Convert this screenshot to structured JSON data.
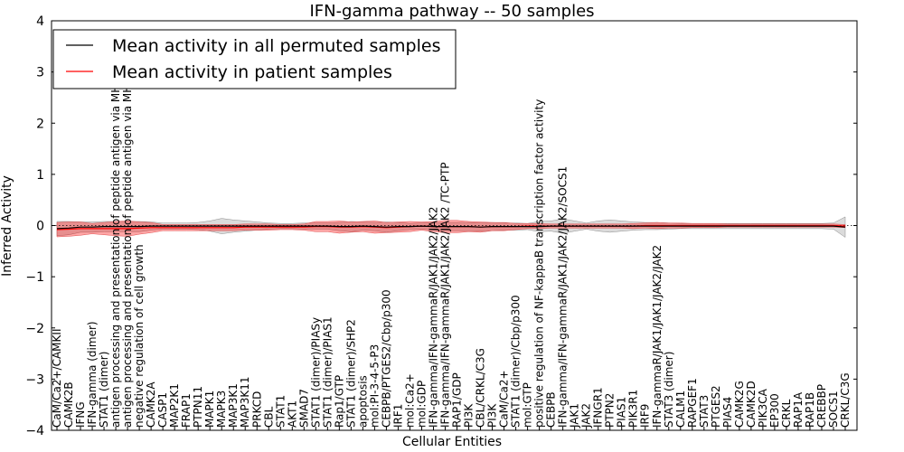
{
  "chart_data": {
    "type": "line",
    "title": "IFN-gamma pathway -- 50 samples",
    "xlabel": "Cellular Entities",
    "ylabel": "Inferred Activity",
    "ylim": [
      -4,
      4
    ],
    "yticks": [
      "4",
      "3",
      "2",
      "1",
      "0",
      "−1",
      "−2",
      "−3",
      "−4"
    ],
    "legend_position": "top-left",
    "series": [
      {
        "name": "Mean activity in all permuted samples",
        "color": "#000000"
      },
      {
        "name": "Mean activity in patient samples",
        "color": "#ff0000"
      }
    ],
    "categories": [
      "CaM/Ca2+/CAMKII",
      "CAMK2B",
      "IFNG",
      "IFN-gamma (dimer)",
      "STAT1 (dimer)",
      "antigen processing and presentation of peptide antigen via MHC class I",
      "antigen processing and presentation of peptide antigen via MHC class II",
      "negative regulation of cell growth",
      "CAMK2A",
      "CASP1",
      "MAP2K1",
      "FRAP1",
      "PTPN11",
      "MAPK1",
      "MAPK3",
      "MAP3K1",
      "MAP3K11",
      "PRKCD",
      "CBL",
      "STAT1",
      "AKT1",
      "SMAD7",
      "STAT1 (dimer)/PIASy",
      "STAT1 (dimer)/PIAS1",
      "Rap1/GTP",
      "STAT1 (dimer)/SHP2",
      "apoptosis",
      "mol:PI-3-4-5-P3",
      "CEBPB/PTGES2/Cbp/p300",
      "IRF1",
      "mol:Ca2+",
      "mol:GDP",
      "IFN-gamma/IFN-gammaR/JAK1/JAK2/JAK2",
      "IFN-gamma/IFN-gammaR/JAK1/JAK2/JAK2 /TC-PTP",
      "RAP1/GDP",
      "PI3K",
      "CBL/CRKL/C3G",
      "PI3K",
      "CaM/Ca2+",
      "STAT1 (dimer)/Cbp/p300",
      "mol:GTP",
      "positive regulation of NF-kappaB transcription factor activity",
      "CEBPB",
      "IFN-gamma/IFN-gammaR/JAK1/JAK2/JAK2/SOCS1",
      "JAK1",
      "JAK2",
      "IFNGR1",
      "PTPN2",
      "PIAS1",
      "PIK3R1",
      "IRF9",
      "IFN-gammaR/JAK1/JAK1/JAK2/JAK2",
      "STAT3 (dimer)",
      "CALM1",
      "RAPGEF1",
      "STAT3",
      "PTGES2",
      "PIAS4",
      "CAMK2G",
      "CAMK2D",
      "PIK3CA",
      "EP300",
      "CRKL",
      "RAP1A",
      "RAP1B",
      "CREBBP",
      "SOCS1",
      "CRKL/C3G"
    ],
    "permuted_mean": [
      -0.06,
      -0.05,
      -0.03,
      -0.03,
      -0.02,
      -0.02,
      -0.02,
      -0.02,
      -0.01,
      -0.01,
      -0.01,
      -0.01,
      -0.01,
      -0.01,
      -0.01,
      -0.01,
      -0.01,
      -0.01,
      -0.01,
      -0.01,
      -0.01,
      -0.01,
      -0.01,
      -0.01,
      -0.02,
      -0.02,
      -0.01,
      -0.02,
      -0.03,
      -0.02,
      -0.02,
      -0.01,
      -0.02,
      -0.02,
      -0.02,
      -0.02,
      -0.03,
      -0.02,
      -0.02,
      -0.02,
      -0.02,
      -0.02,
      -0.01,
      -0.01,
      -0.01,
      -0.01,
      -0.01,
      -0.01,
      -0.01,
      -0.01,
      -0.01,
      -0.01,
      -0.01,
      -0.01,
      -0.01,
      -0.01,
      -0.01,
      -0.01,
      -0.01,
      -0.01,
      -0.01,
      -0.01,
      -0.01,
      -0.01,
      -0.01,
      -0.01,
      -0.01,
      -0.03,
      0.0
    ],
    "permuted_spread": [
      0.14,
      0.13,
      0.1,
      0.1,
      0.1,
      0.1,
      0.1,
      0.1,
      0.08,
      0.06,
      0.06,
      0.06,
      0.07,
      0.1,
      0.15,
      0.12,
      0.1,
      0.08,
      0.06,
      0.05,
      0.05,
      0.06,
      0.06,
      0.06,
      0.08,
      0.1,
      0.08,
      0.08,
      0.1,
      0.08,
      0.06,
      0.06,
      0.07,
      0.08,
      0.08,
      0.08,
      0.08,
      0.08,
      0.07,
      0.07,
      0.06,
      0.1,
      0.1,
      0.14,
      0.1,
      0.06,
      0.1,
      0.12,
      0.1,
      0.08,
      0.07,
      0.07,
      0.06,
      0.05,
      0.05,
      0.05,
      0.05,
      0.05,
      0.05,
      0.05,
      0.05,
      0.05,
      0.05,
      0.05,
      0.05,
      0.05,
      0.06,
      0.2,
      0.05
    ],
    "patient_mean": [
      -0.08,
      -0.07,
      -0.06,
      -0.06,
      -0.06,
      -0.06,
      -0.06,
      -0.05,
      -0.04,
      -0.04,
      -0.04,
      -0.04,
      -0.04,
      -0.04,
      -0.04,
      -0.04,
      -0.03,
      -0.03,
      -0.03,
      -0.03,
      -0.03,
      -0.03,
      -0.02,
      -0.02,
      -0.03,
      -0.03,
      -0.02,
      -0.03,
      -0.04,
      -0.03,
      -0.02,
      -0.01,
      -0.02,
      -0.02,
      -0.02,
      -0.02,
      -0.03,
      -0.02,
      -0.02,
      -0.02,
      -0.01,
      -0.01,
      -0.01,
      -0.01,
      -0.01,
      -0.01,
      -0.01,
      -0.01,
      -0.01,
      -0.01,
      0.0,
      0.0,
      0.0,
      0.0,
      0.0,
      0.0,
      0.0,
      0.0,
      0.0,
      0.0,
      0.0,
      0.0,
      0.0,
      0.0,
      0.0,
      0.0,
      0.0,
      -0.01,
      0.0
    ],
    "patient_spread": [
      0.14,
      0.14,
      0.13,
      0.1,
      0.12,
      0.14,
      0.15,
      0.12,
      0.1,
      0.06,
      0.06,
      0.06,
      0.06,
      0.06,
      0.06,
      0.06,
      0.06,
      0.06,
      0.06,
      0.05,
      0.05,
      0.06,
      0.1,
      0.1,
      0.12,
      0.1,
      0.1,
      0.12,
      0.1,
      0.1,
      0.1,
      0.08,
      0.1,
      0.12,
      0.12,
      0.1,
      0.1,
      0.08,
      0.08,
      0.06,
      0.05,
      0.05,
      0.04,
      0.04,
      0.04,
      0.04,
      0.04,
      0.04,
      0.04,
      0.05,
      0.05,
      0.06,
      0.05,
      0.05,
      0.04,
      0.04,
      0.04,
      0.03,
      0.03,
      0.03,
      0.03,
      0.03,
      0.03,
      0.03,
      0.03,
      0.03,
      0.03,
      0.03,
      0.03
    ]
  }
}
